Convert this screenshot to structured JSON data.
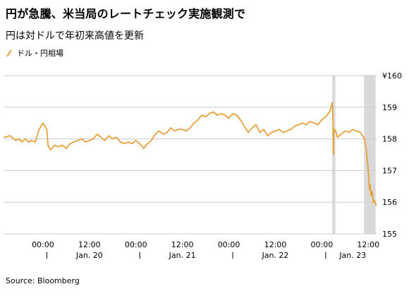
{
  "header": {
    "title": "円が急騰、米当局のレートチェック実施観測で",
    "subtitle": "円は対ドルで年初来高値を更新"
  },
  "footer": {
    "source": "Source: Bloomberg"
  },
  "colors": {
    "series": "#e8a03a",
    "shade": "#d9d9d9",
    "grid": "#cccccc"
  },
  "chart_data": {
    "type": "line",
    "title": "",
    "xlabel": "",
    "ylabel": "",
    "y_unit_prefix": "¥",
    "ylim": [
      155,
      160
    ],
    "yticks": [
      155,
      156,
      157,
      158,
      159,
      160
    ],
    "ytick_labels": [
      "155",
      "156",
      "157",
      "158",
      "159",
      "¥160"
    ],
    "grid": true,
    "xlim": [
      -10,
      86.5
    ],
    "x_unit": "hours since Jan. 20 00:00",
    "xtick_time_labels": [
      {
        "x": 0,
        "label": "00:00"
      },
      {
        "x": 12,
        "label": "12:00"
      },
      {
        "x": 24,
        "label": "00:00"
      },
      {
        "x": 36,
        "label": "12:00"
      },
      {
        "x": 48,
        "label": "00:00"
      },
      {
        "x": 60,
        "label": "12:00"
      },
      {
        "x": 72,
        "label": "00:00"
      },
      {
        "x": 84,
        "label": "12:00"
      }
    ],
    "xtick_date_labels": [
      {
        "x": 12,
        "label": "Jan. 20"
      },
      {
        "x": 36,
        "label": "Jan. 21"
      },
      {
        "x": 60,
        "label": "Jan. 22"
      },
      {
        "x": 80,
        "label": "Jan. 23"
      }
    ],
    "day_separators": [
      1,
      25,
      49,
      73
    ],
    "shaded_regions": [
      [
        74.7,
        75.5
      ],
      [
        82.9,
        85.9
      ]
    ],
    "legend": {
      "position": "top-left",
      "entries": [
        "ドル・円相場"
      ]
    },
    "series": [
      {
        "name": "ドル・円相場",
        "x": [
          -10,
          -8.5,
          -7,
          -6,
          -5.5,
          -4.5,
          -3.8,
          -3,
          -2,
          -1,
          0,
          1,
          1.3,
          2,
          3,
          4,
          5,
          6,
          7,
          8,
          9,
          10,
          11,
          12,
          13,
          14,
          15,
          16,
          17,
          18,
          19,
          20,
          21,
          22,
          23,
          24,
          25,
          26,
          27,
          28,
          29,
          30,
          31,
          32,
          33,
          34,
          35,
          36,
          37,
          38,
          39,
          40,
          41,
          42,
          43,
          44,
          45,
          46,
          47,
          48,
          49,
          50,
          51,
          52,
          53,
          54,
          55,
          56,
          57,
          58,
          59,
          60,
          61,
          62,
          63,
          64,
          65,
          66,
          67,
          68,
          69,
          70,
          71,
          72,
          73,
          74,
          74.5,
          74.7,
          74.9,
          75.0,
          75.1,
          75.3,
          75.6,
          76,
          77,
          78,
          79,
          80,
          81,
          82,
          83,
          83.5,
          84,
          84.3,
          84.5,
          84.7,
          85,
          85.3,
          85.6,
          86
        ],
        "values": [
          158.05,
          158.1,
          157.95,
          158.0,
          157.9,
          158.0,
          157.9,
          157.95,
          157.9,
          158.3,
          158.5,
          158.3,
          157.8,
          157.65,
          157.8,
          157.75,
          157.8,
          157.7,
          157.85,
          157.9,
          157.95,
          158.0,
          157.9,
          157.95,
          158.0,
          158.15,
          158.05,
          157.95,
          158.1,
          158.0,
          158.05,
          157.9,
          157.85,
          157.9,
          157.85,
          157.95,
          157.85,
          157.7,
          157.85,
          157.95,
          158.15,
          158.25,
          158.15,
          158.2,
          158.35,
          158.25,
          158.3,
          158.3,
          158.25,
          158.35,
          158.5,
          158.6,
          158.75,
          158.7,
          158.8,
          158.85,
          158.75,
          158.8,
          158.75,
          158.65,
          158.8,
          158.75,
          158.6,
          158.4,
          158.2,
          158.35,
          158.45,
          158.2,
          158.3,
          158.1,
          158.2,
          158.25,
          158.3,
          158.2,
          158.25,
          158.3,
          158.4,
          158.45,
          158.5,
          158.45,
          158.55,
          158.5,
          158.45,
          158.6,
          158.7,
          158.85,
          159.05,
          159.15,
          158.5,
          157.5,
          158.2,
          158.3,
          158.25,
          158.05,
          158.15,
          158.25,
          158.2,
          158.3,
          158.25,
          158.2,
          158.0,
          157.65,
          157.0,
          156.4,
          156.55,
          156.2,
          156.35,
          156.0,
          156.05,
          155.9
        ]
      }
    ]
  }
}
